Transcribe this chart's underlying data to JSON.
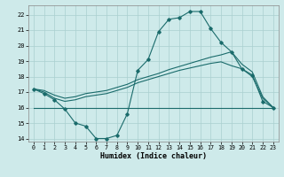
{
  "xlabel": "Humidex (Indice chaleur)",
  "xlim": [
    -0.5,
    23.5
  ],
  "ylim": [
    13.8,
    22.6
  ],
  "yticks": [
    14,
    15,
    16,
    17,
    18,
    19,
    20,
    21,
    22
  ],
  "xticks": [
    0,
    1,
    2,
    3,
    4,
    5,
    6,
    7,
    8,
    9,
    10,
    11,
    12,
    13,
    14,
    15,
    16,
    17,
    18,
    19,
    20,
    21,
    22,
    23
  ],
  "background_color": "#ceeaea",
  "grid_color": "#aacfcf",
  "line_color": "#1a6b6b",
  "line1_x": [
    0,
    1,
    2,
    3,
    4,
    5,
    6,
    7,
    8,
    9,
    10,
    11,
    12,
    13,
    14,
    15,
    16,
    17,
    18,
    19,
    20,
    21,
    22,
    23
  ],
  "line1_y": [
    17.2,
    16.9,
    16.5,
    15.9,
    15.0,
    14.8,
    14.0,
    14.0,
    14.2,
    15.6,
    18.4,
    19.1,
    20.9,
    21.7,
    21.8,
    22.2,
    22.2,
    21.1,
    20.2,
    19.6,
    18.5,
    18.1,
    16.4,
    16.0
  ],
  "line2_x": [
    0,
    3,
    23
  ],
  "line2_y": [
    15.95,
    15.95,
    15.95
  ],
  "line3_x": [
    0,
    1,
    2,
    3,
    4,
    5,
    6,
    7,
    8,
    9,
    10,
    11,
    12,
    13,
    14,
    15,
    16,
    17,
    18,
    19,
    20,
    21,
    22,
    23
  ],
  "line3_y": [
    17.2,
    17.1,
    16.8,
    16.6,
    16.7,
    16.9,
    17.0,
    17.1,
    17.3,
    17.5,
    17.8,
    18.0,
    18.2,
    18.45,
    18.65,
    18.85,
    19.05,
    19.25,
    19.4,
    19.6,
    18.8,
    18.3,
    16.7,
    16.0
  ],
  "line4_x": [
    0,
    1,
    2,
    3,
    4,
    5,
    6,
    7,
    8,
    9,
    10,
    11,
    12,
    13,
    14,
    15,
    16,
    17,
    18,
    19,
    20,
    21,
    22,
    23
  ],
  "line4_y": [
    17.2,
    17.0,
    16.6,
    16.4,
    16.5,
    16.7,
    16.8,
    16.9,
    17.1,
    17.3,
    17.6,
    17.8,
    18.0,
    18.2,
    18.4,
    18.55,
    18.7,
    18.85,
    18.95,
    18.7,
    18.5,
    18.0,
    16.6,
    16.0
  ]
}
